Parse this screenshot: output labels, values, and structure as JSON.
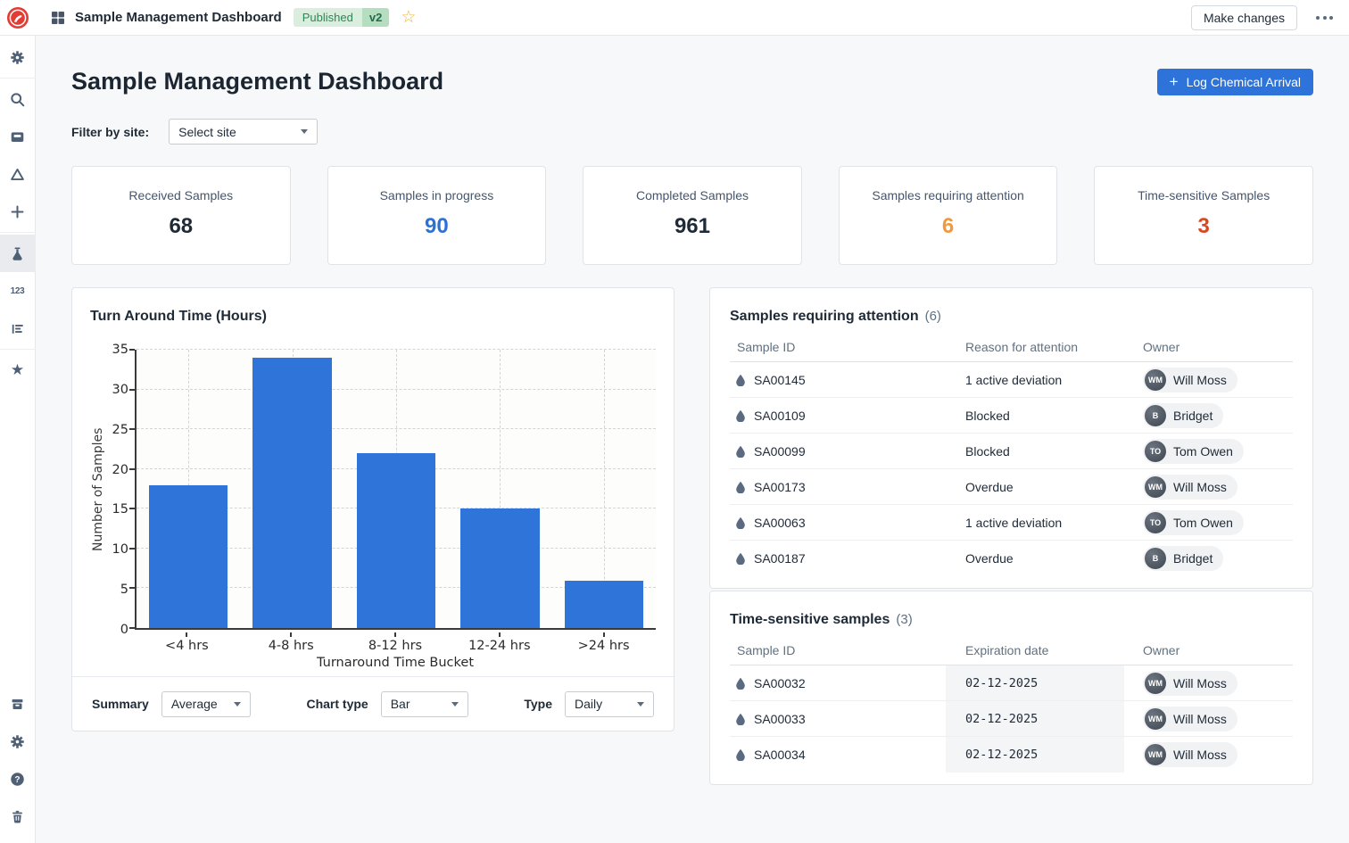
{
  "topbar": {
    "app_title": "Sample Management Dashboard",
    "status_badge": "Published",
    "version_badge": "v2",
    "make_changes_label": "Make changes"
  },
  "page": {
    "title": "Sample Management Dashboard",
    "log_chemical_button": "Log Chemical Arrival",
    "filter_label": "Filter by site:",
    "filter_value": "Select site"
  },
  "stats": [
    {
      "label": "Received Samples",
      "value": "68",
      "color": "#1f2a37"
    },
    {
      "label": "Samples in progress",
      "value": "90",
      "color": "#2d72d2"
    },
    {
      "label": "Completed Samples",
      "value": "961",
      "color": "#1f2a37"
    },
    {
      "label": "Samples requiring attention",
      "value": "6",
      "color": "#f0993e"
    },
    {
      "label": "Time-sensitive Samples",
      "value": "3",
      "color": "#d9481f"
    }
  ],
  "chart_data": {
    "type": "bar",
    "title": "Turn Around Time (Hours)",
    "categories": [
      "<4 hrs",
      "4-8 hrs",
      "8-12 hrs",
      "12-24 hrs",
      ">24 hrs"
    ],
    "values": [
      18,
      34,
      22,
      15,
      6
    ],
    "xlabel": "Turnaround Time Bucket",
    "ylabel": "Number of Samples",
    "ylim": [
      0,
      35
    ],
    "yticks": [
      0,
      5,
      10,
      15,
      20,
      25,
      30,
      35
    ],
    "bar_color": "#2e74d9",
    "grid": "dashed horizontal and vertical",
    "legend": "none"
  },
  "chart_controls": {
    "summary_label": "Summary",
    "summary_value": "Average",
    "chart_type_label": "Chart type",
    "chart_type_value": "Bar",
    "type_label": "Type",
    "type_value": "Daily"
  },
  "attention_table": {
    "title": "Samples requiring attention",
    "count": "(6)",
    "columns": [
      "Sample ID",
      "Reason for attention",
      "Owner"
    ],
    "rows": [
      {
        "id": "SA00145",
        "reason": "1 active deviation",
        "owner": "Will Moss",
        "initials": "WM"
      },
      {
        "id": "SA00109",
        "reason": "Blocked",
        "owner": "Bridget",
        "initials": "B"
      },
      {
        "id": "SA00099",
        "reason": "Blocked",
        "owner": "Tom Owen",
        "initials": "TO"
      },
      {
        "id": "SA00173",
        "reason": "Overdue",
        "owner": "Will Moss",
        "initials": "WM"
      },
      {
        "id": "SA00063",
        "reason": "1 active deviation",
        "owner": "Tom Owen",
        "initials": "TO"
      },
      {
        "id": "SA00187",
        "reason": "Overdue",
        "owner": "Bridget",
        "initials": "B"
      }
    ]
  },
  "time_table": {
    "title": "Time-sensitive samples",
    "count": "(3)",
    "columns": [
      "Sample ID",
      "Expiration date",
      "Owner"
    ],
    "rows": [
      {
        "id": "SA00032",
        "date": "02-12-2025",
        "owner": "Will Moss",
        "initials": "WM"
      },
      {
        "id": "SA00033",
        "date": "02-12-2025",
        "owner": "Will Moss",
        "initials": "WM"
      },
      {
        "id": "SA00034",
        "date": "02-12-2025",
        "owner": "Will Moss",
        "initials": "WM"
      }
    ]
  },
  "colors": {
    "accent_blue": "#2d73da",
    "bar_blue": "#2e74d9",
    "attention_orange": "#f0993e",
    "time_sensitive_red": "#d9481f",
    "badge_green_bg": "#d9eedd",
    "badge_green_text": "#2f855a"
  }
}
